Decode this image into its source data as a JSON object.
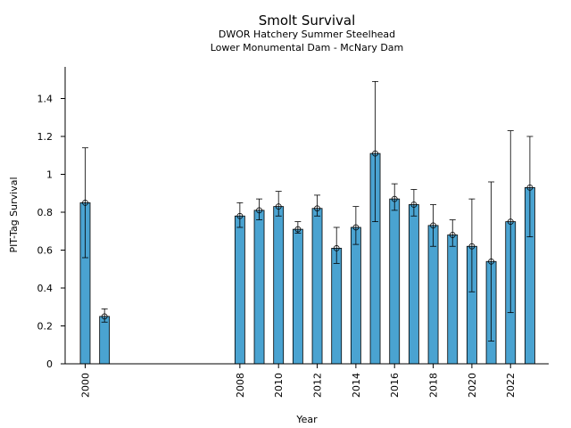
{
  "chart_data": {
    "type": "bar",
    "title": "Smolt Survival",
    "subtitle_lines": [
      "DWOR Hatchery Summer Steelhead",
      "Lower Monumental Dam - McNary Dam"
    ],
    "xlabel": "Year",
    "ylabel": "PIT-Tag Survival",
    "ylim": [
      0,
      1.56
    ],
    "y_ticks": [
      0,
      0.2,
      0.4,
      0.6,
      0.8,
      1,
      1.2,
      1.4
    ],
    "y_tick_labels": [
      "0",
      "0.2",
      "0.4",
      "0.6",
      "0.8",
      "1",
      "1.2",
      "1.4"
    ],
    "x_ticks": [
      2000,
      2008,
      2010,
      2012,
      2014,
      2016,
      2018,
      2020,
      2022
    ],
    "x_tick_labels": [
      "2000",
      "2008",
      "2010",
      "2012",
      "2014",
      "2016",
      "2018",
      "2020",
      "2022"
    ],
    "bar_color": "#4aa3d1",
    "grid": false,
    "categories": [
      2000,
      2001,
      2008,
      2009,
      2010,
      2011,
      2012,
      2013,
      2014,
      2015,
      2016,
      2017,
      2018,
      2019,
      2020,
      2021,
      2022,
      2023
    ],
    "values": [
      0.85,
      0.25,
      0.78,
      0.81,
      0.83,
      0.71,
      0.82,
      0.61,
      0.72,
      1.11,
      0.87,
      0.84,
      0.73,
      0.68,
      0.62,
      0.54,
      0.75,
      0.93
    ],
    "error_low": [
      0.56,
      0.22,
      0.72,
      0.76,
      0.78,
      0.69,
      0.78,
      0.53,
      0.63,
      0.75,
      0.81,
      0.78,
      0.62,
      0.62,
      0.38,
      0.12,
      0.27,
      0.67
    ],
    "error_high": [
      1.14,
      0.29,
      0.85,
      0.87,
      0.91,
      0.75,
      0.89,
      0.72,
      0.83,
      1.49,
      0.95,
      0.92,
      0.84,
      0.76,
      0.87,
      0.96,
      1.23,
      1.2
    ]
  }
}
